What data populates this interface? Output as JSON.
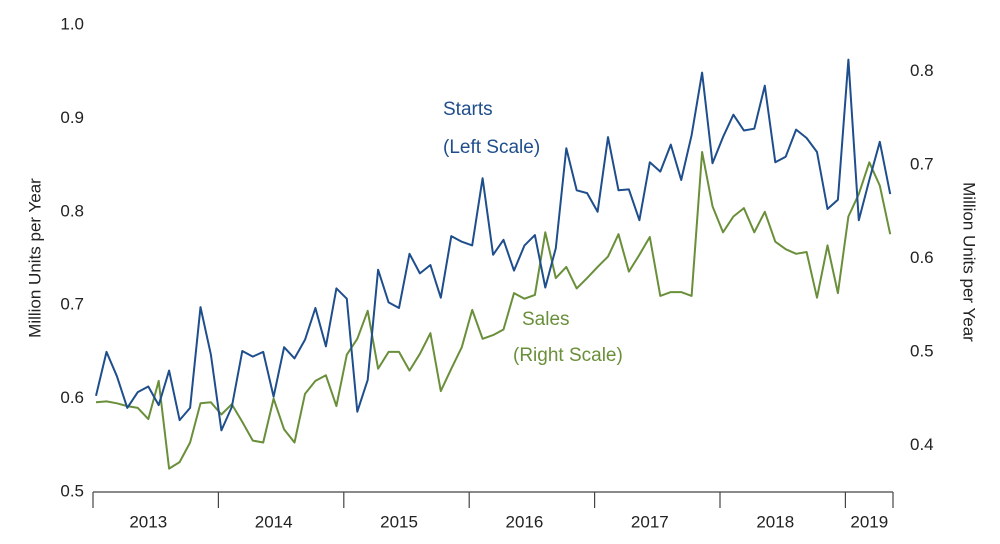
{
  "chart_data": {
    "type": "line",
    "y_label": "Million Units  per Year",
    "y2_label": "Million Units  per Year",
    "categories": [
      null,
      null,
      null,
      null,
      null,
      "2013",
      null,
      null,
      null,
      null,
      null,
      null,
      null,
      null,
      null,
      null,
      null,
      "2014",
      null,
      null,
      null,
      null,
      null,
      null,
      null,
      null,
      null,
      null,
      null,
      "2015",
      null,
      null,
      null,
      null,
      null,
      null,
      null,
      null,
      null,
      null,
      null,
      "2016",
      null,
      null,
      null,
      null,
      null,
      null,
      null,
      null,
      null,
      null,
      null,
      "2017",
      null,
      null,
      null,
      null,
      null,
      null,
      null,
      null,
      null,
      null,
      null,
      "2018",
      null,
      null,
      null,
      null,
      null,
      null,
      null,
      null,
      "2019",
      null,
      null
    ],
    "series": [
      {
        "name": "Starts",
        "scale_label": "(Left Scale)",
        "color": "#1f4e8c",
        "axis": "y",
        "values": [
          0.603,
          0.65,
          0.624,
          0.59,
          0.607,
          0.613,
          0.593,
          0.63,
          0.577,
          0.59,
          0.698,
          0.647,
          0.566,
          0.591,
          0.651,
          0.645,
          0.65,
          0.602,
          0.655,
          0.643,
          0.663,
          0.697,
          0.656,
          0.718,
          0.707,
          0.586,
          0.62,
          0.738,
          0.703,
          0.697,
          0.755,
          0.734,
          0.743,
          0.708,
          0.774,
          0.768,
          0.764,
          0.836,
          0.754,
          0.77,
          0.737,
          0.764,
          0.775,
          0.719,
          0.761,
          0.868,
          0.823,
          0.82,
          0.8,
          0.88,
          0.823,
          0.824,
          0.791,
          0.853,
          0.843,
          0.872,
          0.834,
          0.882,
          0.949,
          0.852,
          0.88,
          0.904,
          0.887,
          0.889,
          0.935,
          0.853,
          0.859,
          0.888,
          0.879,
          0.864,
          0.803,
          0.813,
          0.963,
          0.791,
          0.834,
          0.875,
          0.819
        ]
      },
      {
        "name": "Sales",
        "scale_label": "(Right Scale)",
        "color": "#6a8f3a",
        "axis": "y2",
        "values": [
          0.446,
          0.447,
          0.445,
          0.442,
          0.44,
          0.428,
          0.469,
          0.375,
          0.382,
          0.403,
          0.445,
          0.446,
          0.433,
          0.444,
          0.425,
          0.405,
          0.403,
          0.45,
          0.417,
          0.403,
          0.455,
          0.469,
          0.475,
          0.442,
          0.497,
          0.514,
          0.544,
          0.482,
          0.5,
          0.5,
          0.48,
          0.498,
          0.52,
          0.458,
          0.482,
          0.505,
          0.545,
          0.514,
          0.518,
          0.524,
          0.563,
          0.557,
          0.561,
          0.628,
          0.579,
          0.591,
          0.568,
          0.579,
          0.591,
          0.602,
          0.626,
          0.586,
          0.604,
          0.623,
          0.56,
          0.564,
          0.564,
          0.56,
          0.714,
          0.656,
          0.628,
          0.645,
          0.654,
          0.628,
          0.65,
          0.618,
          0.61,
          0.605,
          0.607,
          0.558,
          0.614,
          0.563,
          0.645,
          0.669,
          0.703,
          0.678,
          0.626
        ]
      }
    ],
    "ylim": [
      0.5,
      1.0
    ],
    "yticks": [
      0.5,
      0.6,
      0.7,
      0.8,
      0.9,
      {
        "value": 1,
        "label": "1.0"
      }
    ],
    "y2lim": [
      0.35,
      0.85
    ],
    "y2ticks": [
      0.4,
      0.5,
      0.6,
      0.7,
      0.8
    ]
  }
}
